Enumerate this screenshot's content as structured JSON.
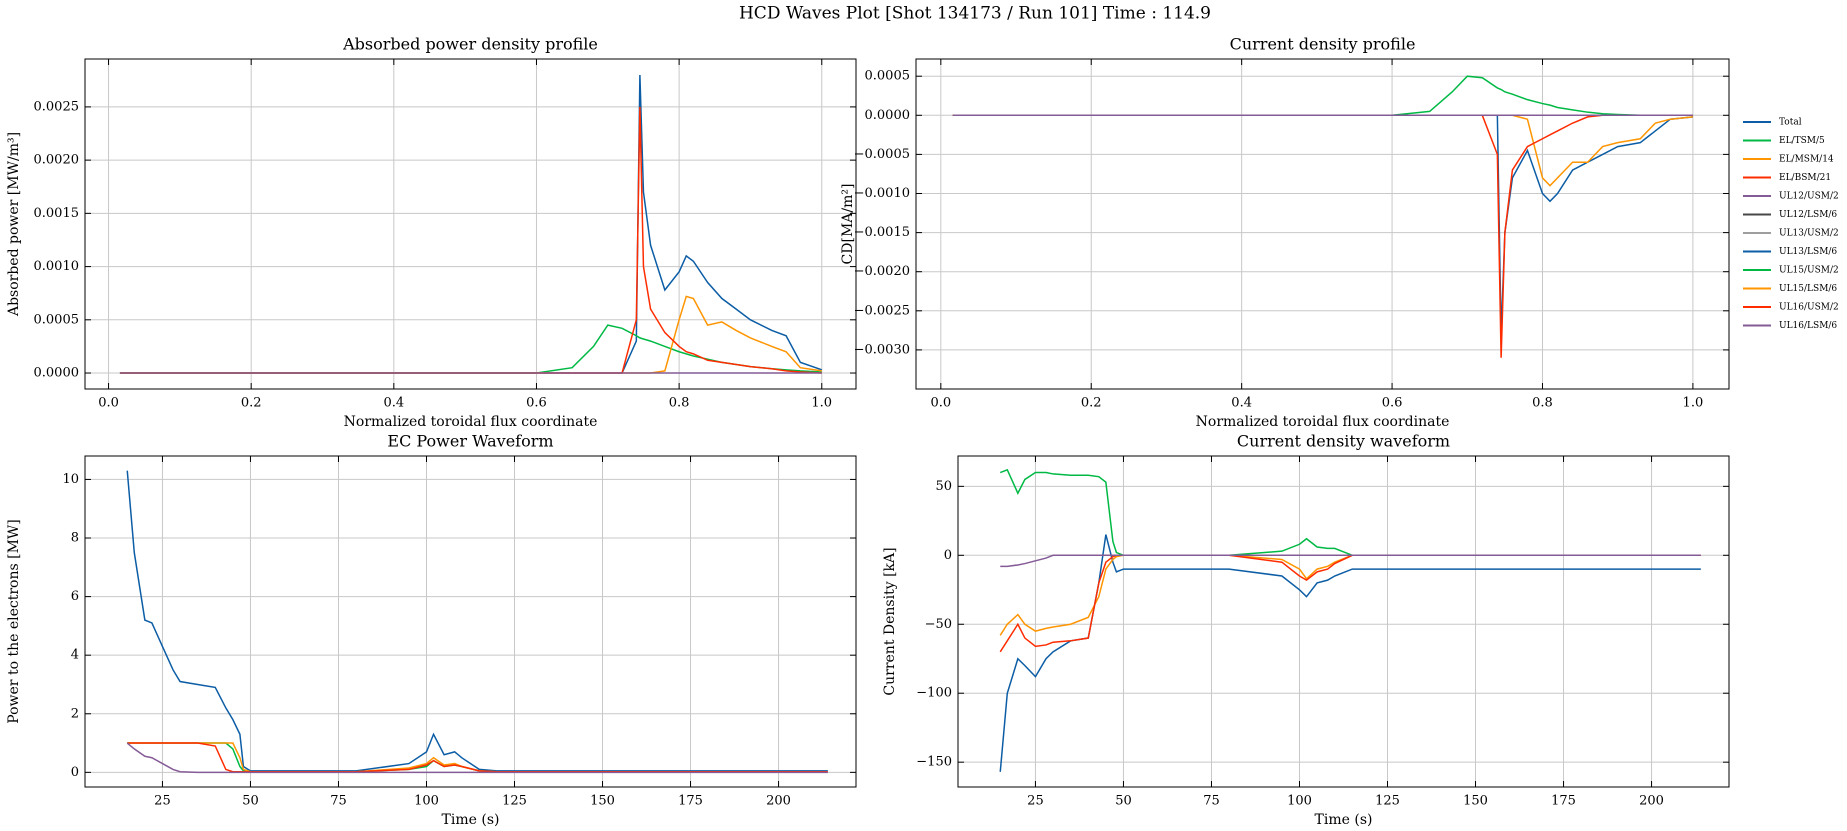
{
  "title": "HCD Waves Plot [Shot 134173 / Run 101] Time : 114.9",
  "chart_data": [
    {
      "type": "line",
      "title": "Absorbed power density profile",
      "xlabel": "Normalized toroidal flux coordinate",
      "ylabel": "Absorbed power [MW/m³]",
      "grid": true,
      "legend": false,
      "x": [
        0.016,
        0.6,
        0.65,
        0.68,
        0.7,
        0.72,
        0.74,
        0.745,
        0.75,
        0.76,
        0.78,
        0.8,
        0.81,
        0.82,
        0.84,
        0.86,
        0.88,
        0.9,
        0.93,
        0.95,
        0.97,
        1.0
      ],
      "xlim": [
        -0.033,
        1.048
      ],
      "xticks": [
        {
          "value": 0,
          "label": "0.0"
        },
        0.2,
        0.4,
        0.6,
        0.8,
        {
          "value": 1,
          "label": "1.0"
        }
      ],
      "ylim": [
        -0.00015,
        0.00295
      ],
      "yticks": [
        {
          "value": 0,
          "label": "0.0000"
        },
        {
          "value": 0.0005,
          "label": "0.0005"
        },
        {
          "value": 0.001,
          "label": "0.0010"
        },
        {
          "value": 0.0015,
          "label": "0.0015"
        },
        {
          "value": 0.002,
          "label": "0.0020"
        },
        {
          "value": 0.0025,
          "label": "0.0025"
        }
      ],
      "series": [
        {
          "name": "Total",
          "color": "#0C5DA5",
          "values": [
            0,
            0,
            0,
            0,
            0,
            0,
            0.0003,
            0.0028,
            0.0017,
            0.0012,
            0.00078,
            0.00095,
            0.0011,
            0.00105,
            0.00085,
            0.0007,
            0.0006,
            0.0005,
            0.0004,
            0.00035,
            0.0001,
            3e-05
          ]
        },
        {
          "name": "EL/TSM/5",
          "color": "#00B945",
          "values": [
            0,
            0,
            5e-05,
            0.00025,
            0.00045,
            0.00042,
            0.00035,
            0.00033,
            0.00032,
            0.0003,
            0.00025,
            0.0002,
            0.00018,
            0.00016,
            0.00013,
            0.0001,
            8e-05,
            6e-05,
            4e-05,
            3e-05,
            2e-05,
            1e-05
          ]
        },
        {
          "name": "EL/MSM/14",
          "color": "#FF9500",
          "values": [
            0,
            0,
            0,
            0,
            0,
            0,
            0,
            0,
            0,
            0,
            2e-05,
            0.0005,
            0.00072,
            0.0007,
            0.00045,
            0.00048,
            0.0004,
            0.00033,
            0.00025,
            0.0002,
            5e-05,
            2e-05
          ]
        },
        {
          "name": "EL/BSM/21",
          "color": "#FF2C00",
          "values": [
            0,
            0,
            0,
            0,
            0,
            0,
            0.0005,
            0.0025,
            0.001,
            0.0006,
            0.00038,
            0.00025,
            0.0002,
            0.00018,
            0.00012,
            0.0001,
            8e-05,
            6e-05,
            4e-05,
            2e-05,
            1e-05,
            0
          ]
        },
        {
          "name": "UL12/USM/2",
          "color": "#845B97",
          "values": [
            0,
            0,
            0,
            0,
            0,
            0,
            0,
            0,
            0,
            0,
            0,
            0,
            0,
            0,
            0,
            0,
            0,
            0,
            0,
            0,
            0,
            0
          ]
        }
      ]
    },
    {
      "type": "line",
      "title": "Current density profile",
      "xlabel": "Normalized toroidal flux coordinate",
      "ylabel": "CD[MA/m²]",
      "grid": true,
      "legend": true,
      "x": [
        0.016,
        0.6,
        0.65,
        0.68,
        0.7,
        0.72,
        0.74,
        0.745,
        0.75,
        0.76,
        0.78,
        0.8,
        0.81,
        0.82,
        0.84,
        0.86,
        0.88,
        0.9,
        0.93,
        0.95,
        0.97,
        1.0
      ],
      "xlim": [
        -0.033,
        1.048
      ],
      "xticks": [
        {
          "value": 0,
          "label": "0.0"
        },
        0.2,
        0.4,
        0.6,
        0.8,
        {
          "value": 1,
          "label": "1.0"
        }
      ],
      "ylim": [
        -0.0035,
        0.00072
      ],
      "yticks": [
        {
          "value": -0.003,
          "label": "−0.0030"
        },
        {
          "value": -0.0025,
          "label": "−0.0025"
        },
        {
          "value": -0.002,
          "label": "−0.0020"
        },
        {
          "value": -0.0015,
          "label": "−0.0015"
        },
        {
          "value": -0.001,
          "label": "−0.0010"
        },
        {
          "value": -0.0005,
          "label": "−0.0005"
        },
        {
          "value": 0,
          "label": "0.0000"
        },
        {
          "value": 0.0005,
          "label": "0.0005"
        }
      ],
      "series": [
        {
          "name": "Total",
          "color": "#0C5DA5",
          "values": [
            0,
            0,
            0,
            0,
            0,
            0,
            0,
            -0.0028,
            -0.0015,
            -0.0008,
            -0.00045,
            -0.001,
            -0.0011,
            -0.001,
            -0.0007,
            -0.0006,
            -0.0005,
            -0.0004,
            -0.00035,
            -0.0002,
            -5e-05,
            -2e-05
          ]
        },
        {
          "name": "EL/TSM/5",
          "color": "#00B945",
          "values": [
            0,
            0,
            5e-05,
            0.0003,
            0.0005,
            0.00048,
            0.00035,
            0.00033,
            0.0003,
            0.00027,
            0.0002,
            0.00015,
            0.00013,
            0.0001,
            7e-05,
            4e-05,
            2e-05,
            1e-05,
            0,
            0,
            0,
            0
          ]
        },
        {
          "name": "EL/MSM/14",
          "color": "#FF9500",
          "values": [
            0,
            0,
            0,
            0,
            0,
            0,
            0,
            0,
            0,
            0,
            -5e-05,
            -0.0008,
            -0.0009,
            -0.0008,
            -0.0006,
            -0.0006,
            -0.0004,
            -0.00035,
            -0.0003,
            -0.0001,
            -5e-05,
            -2e-05
          ]
        },
        {
          "name": "EL/BSM/21",
          "color": "#FF2C00",
          "values": [
            0,
            0,
            0,
            0,
            0,
            0,
            -0.0005,
            -0.0031,
            -0.0015,
            -0.0007,
            -0.0004,
            -0.0003,
            -0.00025,
            -0.0002,
            -0.0001,
            -2e-05,
            0,
            0,
            0,
            0,
            0,
            0
          ]
        },
        {
          "name": "UL12/USM/2",
          "color": "#845B97",
          "values": [
            0,
            0,
            0,
            0,
            0,
            0,
            0,
            0,
            0,
            0,
            0,
            0,
            0,
            0,
            0,
            0,
            0,
            0,
            0,
            0,
            0,
            0
          ]
        },
        {
          "name": "UL12/LSM/6",
          "color": "#474747",
          "values": [
            0,
            0,
            0,
            0,
            0,
            0,
            0,
            0,
            0,
            0,
            0,
            0,
            0,
            0,
            0,
            0,
            0,
            0,
            0,
            0,
            0,
            0
          ]
        },
        {
          "name": "UL13/USM/2",
          "color": "#9e9e9e",
          "values": [
            0,
            0,
            0,
            0,
            0,
            0,
            0,
            0,
            0,
            0,
            0,
            0,
            0,
            0,
            0,
            0,
            0,
            0,
            0,
            0,
            0,
            0
          ]
        },
        {
          "name": "UL13/LSM/6",
          "color": "#0C5DA5",
          "values": [
            0,
            0,
            0,
            0,
            0,
            0,
            0,
            0,
            0,
            0,
            0,
            0,
            0,
            0,
            0,
            0,
            0,
            0,
            0,
            0,
            0,
            0
          ]
        },
        {
          "name": "UL15/USM/2",
          "color": "#00B945",
          "values": [
            0,
            0,
            0,
            0,
            0,
            0,
            0,
            0,
            0,
            0,
            0,
            0,
            0,
            0,
            0,
            0,
            0,
            0,
            0,
            0,
            0,
            0
          ]
        },
        {
          "name": "UL15/LSM/6",
          "color": "#FF9500",
          "values": [
            0,
            0,
            0,
            0,
            0,
            0,
            0,
            0,
            0,
            0,
            0,
            0,
            0,
            0,
            0,
            0,
            0,
            0,
            0,
            0,
            0,
            0
          ]
        },
        {
          "name": "UL16/USM/2",
          "color": "#FF2C00",
          "values": [
            0,
            0,
            0,
            0,
            0,
            0,
            0,
            0,
            0,
            0,
            0,
            0,
            0,
            0,
            0,
            0,
            0,
            0,
            0,
            0,
            0,
            0
          ]
        },
        {
          "name": "UL16/LSM/6",
          "color": "#845B97",
          "values": [
            0,
            0,
            0,
            0,
            0,
            0,
            0,
            0,
            0,
            0,
            0,
            0,
            0,
            0,
            0,
            0,
            0,
            0,
            0,
            0,
            0,
            0
          ]
        }
      ]
    },
    {
      "type": "line",
      "title": "EC Power Waveform",
      "xlabel": "Time (s)",
      "ylabel": "Power to the electrons [MW]",
      "grid": true,
      "legend": false,
      "x": [
        15,
        17,
        20,
        22,
        25,
        28,
        30,
        35,
        40,
        43,
        45,
        47,
        48,
        50,
        60,
        80,
        95,
        100,
        102,
        105,
        108,
        110,
        115,
        120,
        150,
        214
      ],
      "xlim": [
        3,
        222
      ],
      "xticks": [
        25,
        50,
        75,
        100,
        125,
        150,
        175,
        200
      ],
      "ylim": [
        -0.5,
        10.8
      ],
      "yticks": [
        0,
        2,
        4,
        6,
        8,
        10
      ],
      "series": [
        {
          "name": "Total",
          "color": "#0C5DA5",
          "values": [
            10.3,
            7.5,
            5.2,
            5.1,
            4.3,
            3.5,
            3.1,
            3.0,
            2.9,
            2.2,
            1.8,
            1.3,
            0.2,
            0.05,
            0.05,
            0.05,
            0.3,
            0.7,
            1.3,
            0.6,
            0.7,
            0.5,
            0.1,
            0.05,
            0.05,
            0.05
          ]
        },
        {
          "name": "EL/TSM/5",
          "color": "#00B945",
          "values": [
            1,
            1,
            1,
            1,
            1,
            1,
            1,
            1,
            1,
            1,
            0.8,
            0.2,
            0.05,
            0.02,
            0.02,
            0.02,
            0.1,
            0.2,
            0.4,
            0.2,
            0.25,
            0.2,
            0.05,
            0.02,
            0.02,
            0.02
          ]
        },
        {
          "name": "EL/MSM/14",
          "color": "#FF9500",
          "values": [
            1,
            1,
            1,
            1,
            1,
            1,
            1,
            1,
            1,
            1,
            1,
            0.5,
            0.1,
            0.02,
            0.02,
            0.02,
            0.15,
            0.3,
            0.5,
            0.25,
            0.3,
            0.2,
            0.05,
            0.02,
            0.02,
            0.02
          ]
        },
        {
          "name": "EL/BSM/21",
          "color": "#FF2C00",
          "values": [
            1,
            1,
            1,
            1,
            1,
            1,
            1,
            1,
            0.9,
            0.1,
            0.02,
            0.02,
            0.02,
            0.02,
            0.02,
            0.02,
            0.1,
            0.25,
            0.4,
            0.2,
            0.25,
            0.2,
            0.05,
            0.02,
            0.02,
            0.02
          ]
        },
        {
          "name": "UL12/USM/2",
          "color": "#845B97",
          "values": [
            1,
            0.8,
            0.55,
            0.5,
            0.3,
            0.1,
            0.02,
            0,
            0,
            0,
            0,
            0,
            0,
            0,
            0,
            0,
            0,
            0,
            0,
            0,
            0,
            0,
            0,
            0,
            0,
            0
          ]
        }
      ]
    },
    {
      "type": "line",
      "title": "Current density waveform",
      "xlabel": "Time (s)",
      "ylabel": "Current Density [kA]",
      "grid": true,
      "legend": false,
      "x": [
        15,
        17,
        20,
        22,
        25,
        28,
        30,
        35,
        40,
        43,
        45,
        47,
        48,
        50,
        60,
        80,
        95,
        100,
        102,
        105,
        108,
        110,
        115,
        120,
        150,
        214
      ],
      "xlim": [
        3,
        222
      ],
      "xticks": [
        25,
        50,
        75,
        100,
        125,
        150,
        175,
        200
      ],
      "ylim": [
        -168,
        72
      ],
      "yticks": [
        {
          "value": -150,
          "label": "−150"
        },
        {
          "value": -100,
          "label": "−100"
        },
        {
          "value": -50,
          "label": "−50"
        },
        0,
        50
      ],
      "series": [
        {
          "name": "Total",
          "color": "#0C5DA5",
          "values": [
            -157,
            -100,
            -75,
            -80,
            -88,
            -75,
            -70,
            -62,
            -60,
            -20,
            15,
            -5,
            -12,
            -10,
            -10,
            -10,
            -15,
            -25,
            -30,
            -20,
            -18,
            -15,
            -10,
            -10,
            -10,
            -10
          ]
        },
        {
          "name": "EL/TSM/5",
          "color": "#00B945",
          "values": [
            60,
            62,
            45,
            55,
            60,
            60,
            59,
            58,
            58,
            57,
            53,
            10,
            2,
            0,
            0,
            0,
            3,
            8,
            12,
            6,
            5,
            5,
            0,
            0,
            0,
            0
          ]
        },
        {
          "name": "EL/MSM/14",
          "color": "#FF9500",
          "values": [
            -58,
            -50,
            -43,
            -50,
            -55,
            -53,
            -52,
            -50,
            -45,
            -30,
            -10,
            -3,
            -1,
            0,
            0,
            0,
            -3,
            -10,
            -17,
            -10,
            -8,
            -5,
            0,
            0,
            0,
            0
          ]
        },
        {
          "name": "EL/BSM/21",
          "color": "#FF2C00",
          "values": [
            -70,
            -62,
            -50,
            -60,
            -66,
            -65,
            -63,
            -62,
            -60,
            -20,
            -5,
            -1,
            0,
            0,
            0,
            0,
            -5,
            -15,
            -18,
            -12,
            -10,
            -6,
            0,
            0,
            0,
            0
          ]
        },
        {
          "name": "UL12/USM/2",
          "color": "#845B97",
          "values": [
            -8,
            -8,
            -7,
            -6,
            -4,
            -2,
            0,
            0,
            0,
            0,
            0,
            0,
            0,
            0,
            0,
            0,
            0,
            0,
            0,
            0,
            0,
            0,
            0,
            0,
            0,
            0
          ]
        }
      ]
    }
  ]
}
